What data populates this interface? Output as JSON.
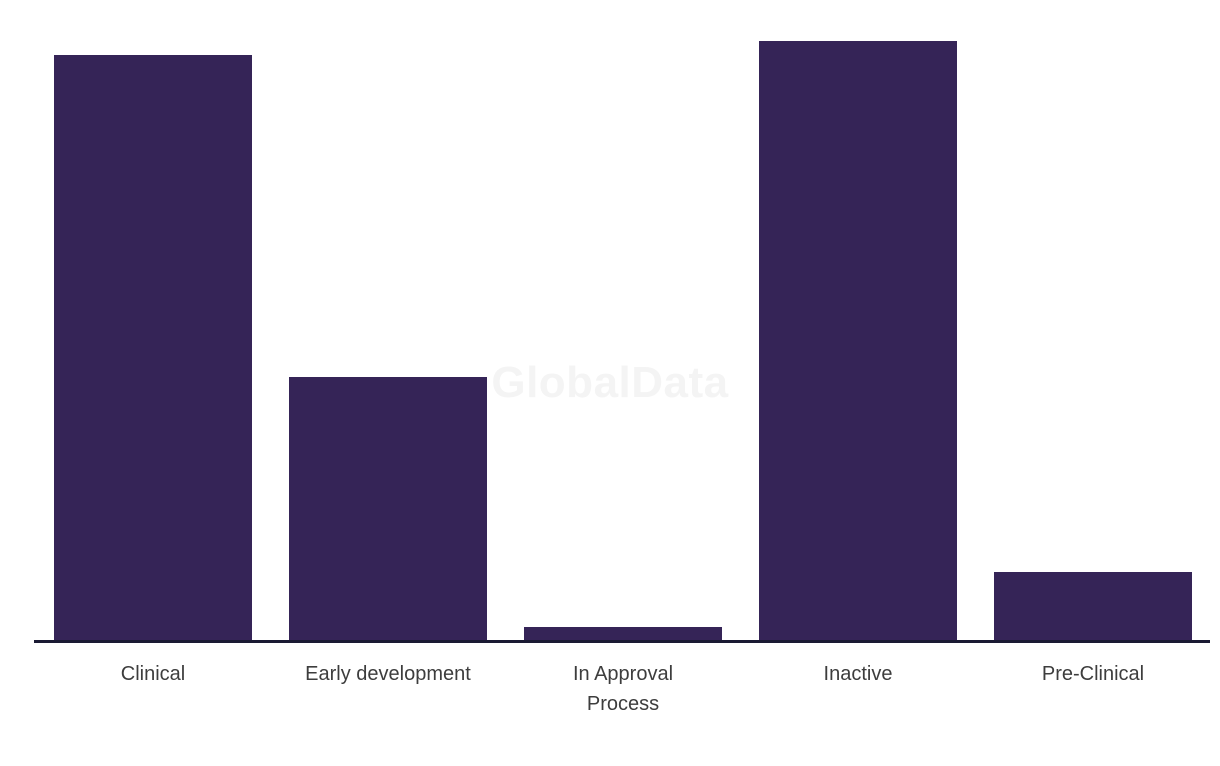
{
  "watermark": {
    "text": "GlobalData"
  },
  "colors": {
    "bar": "#352457",
    "axis_line": "#1a1a33",
    "label_text": "#3d3d3d",
    "watermark_text": "#f4f4f4",
    "background": "#ffffff"
  },
  "chart_data": {
    "type": "bar",
    "title": "",
    "xlabel": "",
    "ylabel": "",
    "categories": [
      "Clinical",
      "Early development",
      "In Approval\nProcess",
      "Inactive",
      "Pre-Clinical"
    ],
    "values_pct_of_max": [
      97.7,
      43.9,
      2.2,
      100.0,
      11.4
    ],
    "ylim": [
      0,
      100
    ],
    "grid": false,
    "legend": false,
    "y_axis_visible": false,
    "bar_color": "#352457",
    "notes": "No y-axis scale shown; values are bar heights relative to tallest bar (Inactive = 100)."
  }
}
